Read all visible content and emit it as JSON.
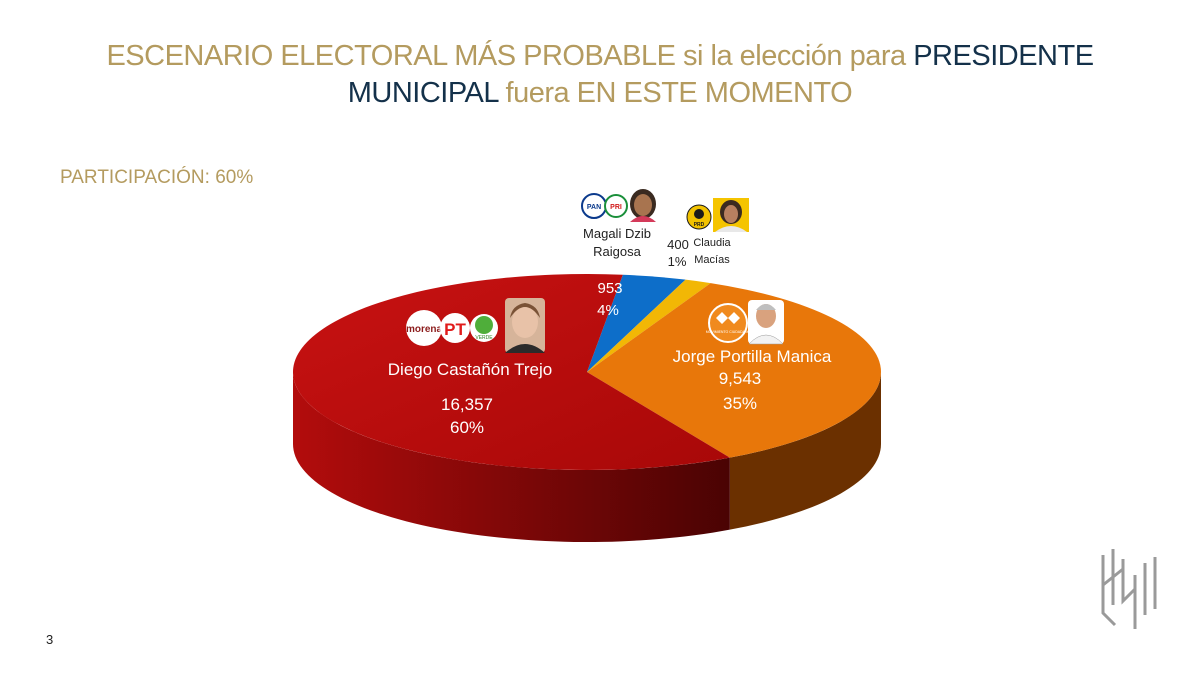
{
  "title": {
    "part1": "ESCENARIO ELECTORAL MÁS PROBABLE si la elección para ",
    "part2": "PRESIDENTE",
    "part3": "MUNICIPAL",
    "part4": " fuera EN ESTE MOMENTO"
  },
  "participation": "PARTICIPACIÓN: 60%",
  "page_number": "3",
  "colors": {
    "gold": "#b49b5f",
    "navy": "#14314a",
    "red": "#c20e0e",
    "orange": "#e8770a",
    "blue": "#0d6ec9",
    "yellow": "#f2b705"
  },
  "party_logos": {
    "morena": "morena",
    "pt": "PT",
    "verde": "VERDE",
    "pan": "PAN",
    "pri": "PRI",
    "prd": "PRD",
    "mc": "MOVIMIENTO CIUDADANO"
  },
  "icons": [
    "person-avatar-icon",
    "party-logo-icon",
    "company-logo-icon"
  ],
  "chart_data": {
    "type": "pie",
    "style": "3d-exploded-none",
    "participation_percent": 60,
    "slices": [
      {
        "name": "Diego Castañón Trejo",
        "value": 16357,
        "value_label": "16,357",
        "percent_label": "60%",
        "color": "#c20e0e",
        "parties": [
          "morena",
          "PT",
          "VERDE"
        ]
      },
      {
        "name": "Magali Dzib Raigosa",
        "value": 953,
        "value_label": "953",
        "percent_label": "4%",
        "color": "#0d6ec9",
        "parties": [
          "PAN",
          "PRI",
          "PRD"
        ]
      },
      {
        "name": "Claudia Macías",
        "value": 400,
        "value_label": "400",
        "percent_label": "1%",
        "color": "#f2b705",
        "parties": [
          "PRD"
        ]
      },
      {
        "name": "Jorge Portilla Manica",
        "value": 9543,
        "value_label": "9,543",
        "percent_label": "35%",
        "color": "#e8770a",
        "parties": [
          "MOVIMIENTO CIUDADANO"
        ]
      }
    ],
    "labels": {
      "diego_name": "Diego Castañón Trejo",
      "diego_value": "16,357",
      "diego_pct": "60%",
      "magali_name_1": "Magali Dzib",
      "magali_name_2": "Raigosa",
      "magali_value": "953",
      "magali_pct": "4%",
      "claudia_name_1": "Claudia",
      "claudia_name_2": "Macías",
      "claudia_value": "400",
      "claudia_pct": "1%",
      "jorge_name": "Jorge Portilla Manica",
      "jorge_value": "9,543",
      "jorge_pct": "35%"
    }
  }
}
